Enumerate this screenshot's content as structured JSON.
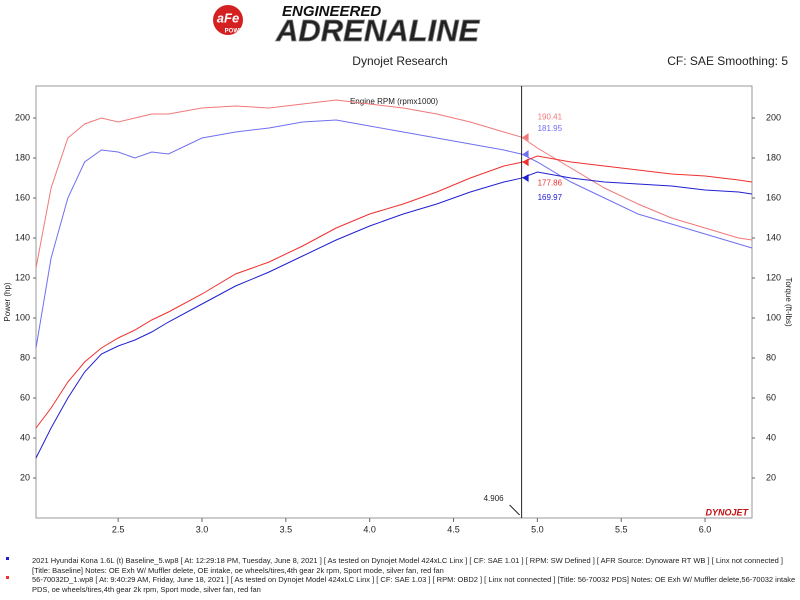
{
  "header": {
    "logo": "aFe",
    "logo_sub": "POWER",
    "tagline": "ENGINEERED",
    "brand": "ADRENALINE",
    "source": "Dynojet Research",
    "settings": "CF: SAE Smoothing: 5"
  },
  "chart_data": {
    "type": "line",
    "xlabel": "Engine RPM (rpmx1000)",
    "ylabel": "Power (hp)",
    "y2label": "Torque (ft-lbs)",
    "watermark": "DYNOJET",
    "x": [
      2.01,
      2.1,
      2.2,
      2.3,
      2.4,
      2.5,
      2.6,
      2.7,
      2.8,
      3.0,
      3.2,
      3.4,
      3.6,
      3.8,
      4.0,
      4.2,
      4.4,
      4.6,
      4.8,
      4.906,
      5.0,
      5.2,
      5.4,
      5.6,
      5.8,
      6.0,
      6.2,
      6.28
    ],
    "cursor_index": 19,
    "series": [
      {
        "color": "#f07878",
        "axis": "y2",
        "values": [
          125,
          165,
          190,
          197,
          200,
          198,
          200,
          202,
          202,
          205,
          206,
          205,
          207,
          209,
          207,
          205,
          202,
          198,
          193,
          190.41,
          185,
          175,
          165,
          157,
          150,
          145,
          140,
          139
        ]
      },
      {
        "color": "#7070f0",
        "axis": "y2",
        "values": [
          85,
          130,
          160,
          178,
          184,
          183,
          180,
          183,
          182,
          190,
          193,
          195,
          198,
          199,
          196,
          193,
          190,
          187,
          184,
          181.95,
          178,
          168,
          160,
          152,
          147,
          142,
          137,
          135
        ]
      },
      {
        "color": "#f03030",
        "values": [
          45,
          55,
          68,
          78,
          85,
          90,
          94,
          99,
          103,
          112,
          122,
          128,
          136,
          145,
          152,
          157,
          163,
          170,
          176,
          177.86,
          181,
          178,
          176,
          174,
          172,
          171,
          169,
          168
        ]
      },
      {
        "color": "#2020d0",
        "values": [
          30,
          45,
          60,
          73,
          82,
          86,
          89,
          93,
          98,
          107,
          116,
          123,
          131,
          139,
          146,
          152,
          157,
          163,
          168,
          169.97,
          173,
          170,
          168,
          167,
          166,
          164,
          163,
          162
        ]
      }
    ],
    "xlim": [
      2.01,
      6.28
    ],
    "xticks": [
      2.5,
      {
        "value": 3,
        "label": "3.0"
      },
      3.5,
      {
        "value": 4,
        "label": "4.0"
      },
      4.5,
      {
        "value": 5,
        "label": "5.0"
      },
      5.5,
      {
        "value": 6,
        "label": "6.0"
      }
    ],
    "ylim": [
      0,
      216
    ],
    "yticks": [
      20,
      40,
      60,
      80,
      100,
      120,
      140,
      160,
      180,
      200
    ],
    "y2lim": [
      0,
      216
    ],
    "y2ticks": [
      20,
      40,
      60,
      80,
      100,
      120,
      140,
      160,
      180,
      200
    ],
    "grid": false,
    "notes": [
      {
        "color": "#2020d0",
        "text": "2021 Hyundai Kona 1.6L (t) Baseline_5.wp8 [ At: 12:29:18 PM, Tuesday, June 8, 2021 ] [ As tested on Dynojet Model 424xLC Linx ] [ CF: SAE 1.01 ] [ RPM: SW Defined ] [ AFR Source: Dynoware RT WB ] [ Linx not connected ] [Title: Baseline]  Notes: OE Exh W/ Muffler delete, OE intake, oe wheels/tires,4th gear 2k rpm, Sport mode, silver fan, red fan"
      },
      {
        "color": "#f03030",
        "text": "56-70032D_1.wp8 [ At: 9:40:29 AM, Friday, June 18, 2021 ] [ As tested on Dynojet Model 424xLC Linx ] [ CF: SAE 1.03 ] [ RPM: OBD2 ] [ Linx not connected ] [Title: 56-70032 PDS]  Notes: OE Exh W/ Muffler delete,56-70032 intake PDS, oe wheels/tires,4th gear 2k rpm, Sport mode, silver fan, red fan"
      }
    ]
  }
}
